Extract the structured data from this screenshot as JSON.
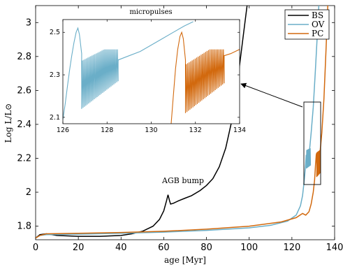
{
  "chart_data": [
    {
      "type": "line",
      "xlabel": "age [Myr]",
      "ylabel": "Log L/L⊙",
      "xlim": [
        0,
        140
      ],
      "ylim": [
        1.72,
        3.1
      ],
      "xticks": [
        "0",
        "20",
        "40",
        "60",
        "80",
        "100",
        "120",
        "140"
      ],
      "yticks": [
        "1.8",
        "2",
        "2.2",
        "2.4",
        "2.6",
        "2.8",
        "3"
      ],
      "legend": {
        "placement": "top-right"
      },
      "series": [
        {
          "name": "BS",
          "color": "#000000",
          "points": [
            [
              0,
              1.73
            ],
            [
              2,
              1.75
            ],
            [
              5,
              1.755
            ],
            [
              10,
              1.745
            ],
            [
              20,
              1.74
            ],
            [
              30,
              1.74
            ],
            [
              40,
              1.745
            ],
            [
              45,
              1.755
            ],
            [
              50,
              1.77
            ],
            [
              55,
              1.8
            ],
            [
              58,
              1.84
            ],
            [
              60,
              1.89
            ],
            [
              61.3,
              1.95
            ],
            [
              62,
              1.985
            ],
            [
              62.7,
              1.95
            ],
            [
              63.2,
              1.93
            ],
            [
              64.5,
              1.935
            ],
            [
              67,
              1.95
            ],
            [
              70,
              1.965
            ],
            [
              73,
              1.98
            ],
            [
              77,
              2.01
            ],
            [
              80,
              2.04
            ],
            [
              83,
              2.08
            ],
            [
              86,
              2.15
            ],
            [
              89,
              2.26
            ],
            [
              92,
              2.43
            ],
            [
              94,
              2.6
            ],
            [
              96,
              2.8
            ],
            [
              98,
              3.0
            ],
            [
              99,
              3.1
            ]
          ]
        },
        {
          "name": "OV",
          "color": "#6aaec8",
          "points": [
            [
              0,
              1.73
            ],
            [
              2,
              1.745
            ],
            [
              5,
              1.75
            ],
            [
              20,
              1.753
            ],
            [
              40,
              1.758
            ],
            [
              60,
              1.765
            ],
            [
              80,
              1.775
            ],
            [
              100,
              1.79
            ],
            [
              110,
              1.805
            ],
            [
              118,
              1.83
            ],
            [
              122,
              1.865
            ],
            [
              124,
              1.92
            ],
            [
              125,
              1.98
            ],
            [
              125.6,
              2.05
            ],
            [
              126,
              2.1
            ],
            [
              126.4,
              2.16
            ],
            [
              126.7,
              2.22
            ],
            [
              126.9,
              2.21
            ],
            [
              127.0,
              2.15
            ],
            [
              127.4,
              2.2
            ],
            [
              128.2,
              2.24
            ],
            [
              129,
              2.35
            ],
            [
              130,
              2.5
            ],
            [
              131,
              2.72
            ],
            [
              132,
              2.95
            ],
            [
              132.6,
              3.1
            ]
          ],
          "pulse_range": [
            126.8,
            128.7,
            2.14,
            2.26
          ]
        },
        {
          "name": "PC",
          "color": "#d2690e",
          "points": [
            [
              0,
              1.73
            ],
            [
              2,
              1.745
            ],
            [
              5,
              1.755
            ],
            [
              20,
              1.758
            ],
            [
              40,
              1.763
            ],
            [
              60,
              1.77
            ],
            [
              80,
              1.782
            ],
            [
              100,
              1.8
            ],
            [
              115,
              1.825
            ],
            [
              122,
              1.85
            ],
            [
              125,
              1.875
            ],
            [
              126.5,
              1.865
            ],
            [
              128,
              1.885
            ],
            [
              129,
              1.93
            ],
            [
              130,
              2.0
            ],
            [
              130.6,
              2.07
            ],
            [
              131,
              2.15
            ],
            [
              131.4,
              2.22
            ],
            [
              131.6,
              2.23
            ],
            [
              131.7,
              2.17
            ],
            [
              132.1,
              2.22
            ],
            [
              133.2,
              2.24
            ],
            [
              134,
              2.35
            ],
            [
              135,
              2.55
            ],
            [
              136,
              2.85
            ],
            [
              136.8,
              3.1
            ]
          ],
          "pulse_range": [
            131.6,
            133.3,
            2.09,
            2.25
          ]
        }
      ],
      "annotations": [
        {
          "text": "AGB bump"
        }
      ]
    },
    {
      "type": "line",
      "title": "micropulses",
      "xlim": [
        126,
        134
      ],
      "ylim": [
        2.07,
        2.56
      ],
      "xticks": [
        "126",
        "128",
        "130",
        "132",
        "134"
      ],
      "yticks": [
        "2.1",
        "2.3",
        "2.5"
      ],
      "series": [
        {
          "name": "OV",
          "color": "#6aaec8",
          "points": [
            [
              126.0,
              2.09
            ],
            [
              126.1,
              2.16
            ],
            [
              126.2,
              2.24
            ],
            [
              126.3,
              2.32
            ],
            [
              126.4,
              2.39
            ],
            [
              126.5,
              2.45
            ],
            [
              126.6,
              2.5
            ],
            [
              126.68,
              2.52
            ],
            [
              126.75,
              2.49
            ],
            [
              126.85,
              2.4
            ]
          ],
          "pulses": {
            "start": 126.85,
            "end": 128.5,
            "count": 26,
            "low": [
              2.14,
              2.27
            ],
            "high": [
              2.33,
              2.42
            ]
          },
          "after": [
            [
              128.5,
              2.37
            ],
            [
              129,
              2.39
            ],
            [
              129.5,
              2.41
            ],
            [
              130,
              2.44
            ],
            [
              130.5,
              2.47
            ],
            [
              131,
              2.5
            ],
            [
              131.5,
              2.53
            ],
            [
              131.9,
              2.55
            ]
          ]
        },
        {
          "name": "PC",
          "color": "#d2690e",
          "points": [
            [
              130.9,
              2.07
            ],
            [
              131.0,
              2.2
            ],
            [
              131.1,
              2.33
            ],
            [
              131.2,
              2.42
            ],
            [
              131.3,
              2.48
            ],
            [
              131.38,
              2.5
            ],
            [
              131.45,
              2.47
            ],
            [
              131.55,
              2.37
            ]
          ],
          "pulses": {
            "start": 131.55,
            "end": 133.3,
            "count": 26,
            "low": [
              2.12,
              2.26
            ],
            "high": [
              2.3,
              2.42
            ]
          },
          "after": [
            [
              133.3,
              2.39
            ],
            [
              133.6,
              2.4
            ],
            [
              134,
              2.42
            ]
          ]
        }
      ]
    }
  ]
}
